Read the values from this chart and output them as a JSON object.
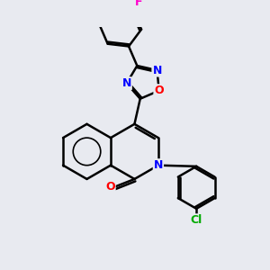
{
  "bg_color": "#e8eaf0",
  "bond_color": "#000000",
  "bond_width": 1.8,
  "atom_colors": {
    "N": "#0000ff",
    "O": "#ff0000",
    "F": "#ff00cc",
    "Cl": "#00aa00"
  },
  "font_size": 9,
  "figsize": [
    3.0,
    3.0
  ],
  "dpi": 100
}
